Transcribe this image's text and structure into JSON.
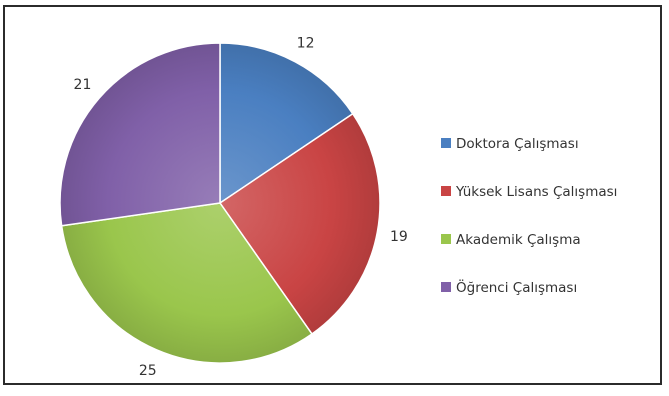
{
  "chart_data": {
    "type": "pie",
    "categories": [
      "Doktora Çalışması",
      "Yüksek Lisans Çalışması",
      "Akademik Çalışma",
      "Öğrenci Çalışması"
    ],
    "values": [
      12,
      19,
      25,
      21
    ],
    "colors": [
      "#4a7fc1",
      "#c94444",
      "#9ac64c",
      "#8060a8"
    ],
    "start_angle_deg": 0,
    "direction": "clockwise",
    "legend_position": "right",
    "show_values": true
  }
}
